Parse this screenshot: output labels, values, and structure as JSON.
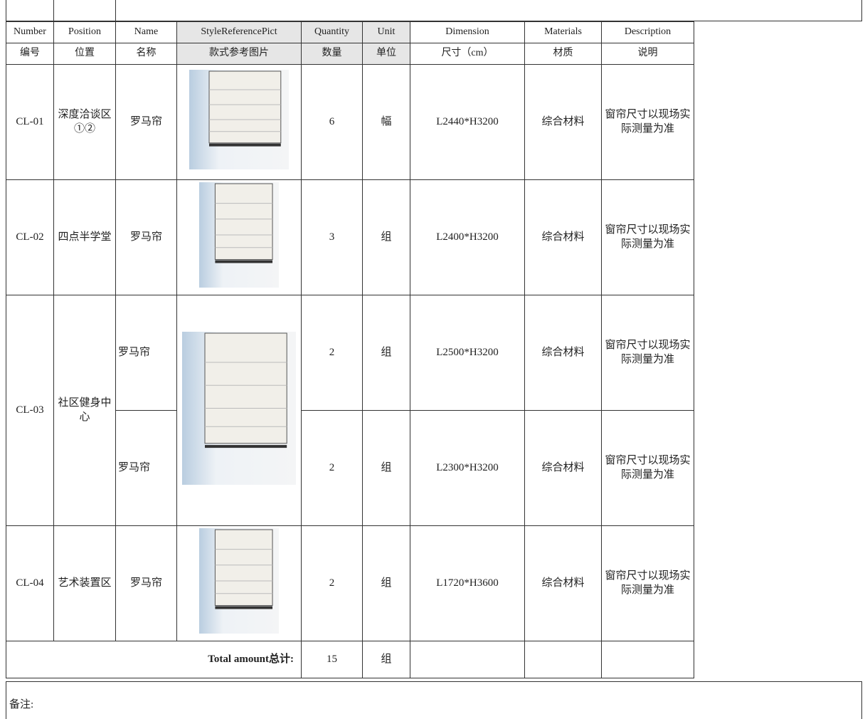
{
  "table": {
    "headers_en": [
      "Number",
      "Position",
      "Name",
      "StyleReferencePict",
      "Quantity",
      "Unit",
      "Dimension",
      "Materials",
      "Description"
    ],
    "headers_zh": [
      "编号",
      "位置",
      "名称",
      "款式参考图片",
      "数量",
      "单位",
      "尺寸（cm）",
      "材质",
      "说明"
    ],
    "rows": [
      {
        "number": "CL-01",
        "position": "深度洽谈区①②",
        "name": "罗马帘",
        "quantity": 6,
        "unit": "幅",
        "dimension": "L2440*H3200",
        "material": "综合材料",
        "description": "窗帘尺寸以现场实际测量为准"
      },
      {
        "number": "CL-02",
        "position": "四点半学堂",
        "name": "罗马帘",
        "quantity": 3,
        "unit": "组",
        "dimension": "L2400*H3200",
        "material": "综合材料",
        "description": "窗帘尺寸以现场实际测量为准"
      },
      {
        "number": "CL-03",
        "position": "社区健身中心",
        "name": "罗马帘",
        "quantity": 2,
        "unit": "组",
        "dimension": "L2500*H3200",
        "material": "综合材料",
        "description": "窗帘尺寸以现场实际测量为准"
      },
      {
        "name": "罗马帘",
        "quantity": 2,
        "unit": "组",
        "dimension": "L2300*H3200",
        "material": "综合材料",
        "description": "窗帘尺寸以现场实际测量为准"
      },
      {
        "number": "CL-04",
        "position": "艺术装置区",
        "name": "罗马帘",
        "quantity": 2,
        "unit": "组",
        "dimension": "L1720*H3600",
        "material": "综合材料",
        "description": "窗帘尺寸以现场实际测量为准"
      }
    ],
    "total": {
      "label": "Total amount总计:",
      "quantity": 15,
      "unit": "组"
    }
  },
  "remarks": "备注:"
}
